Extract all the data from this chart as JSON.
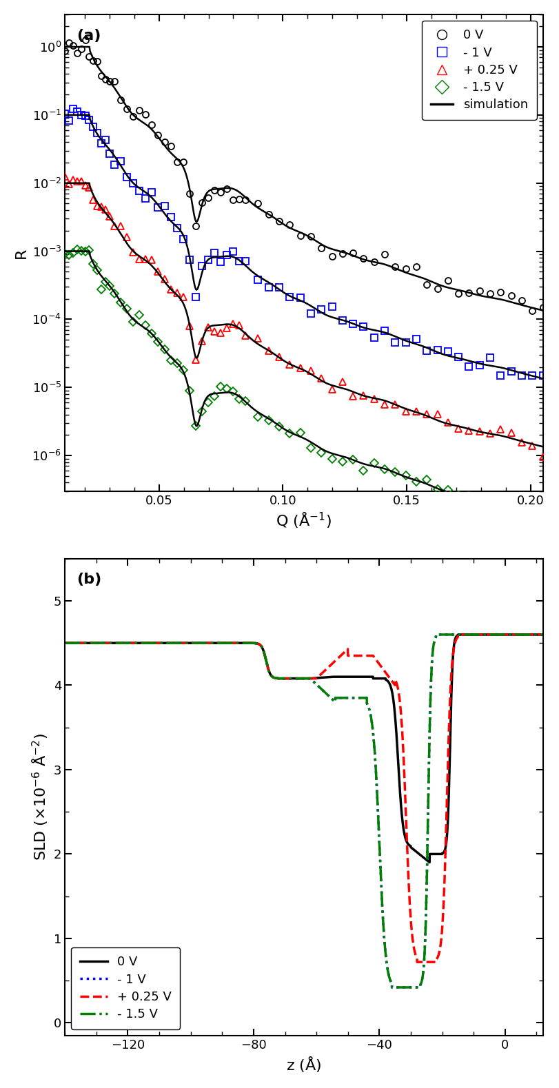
{
  "panel_a": {
    "title_label": "(a)",
    "xlabel": "Q (Å⁻¹)",
    "ylabel": "R",
    "xlim": [
      0.012,
      0.205
    ],
    "ylim": [
      3e-07,
      3.0
    ],
    "colors": [
      "black",
      "blue",
      "red",
      "green"
    ],
    "markers": [
      "o",
      "s",
      "^",
      "D"
    ],
    "offsets": [
      1.0,
      0.1,
      0.01,
      0.001
    ],
    "labels": [
      "0 V",
      "- 1 V",
      "+ 0.25 V",
      "- 1.5 V"
    ]
  },
  "panel_b": {
    "title_label": "(b)",
    "xlabel": "z (Å)",
    "ylabel": "SLD (x10⁻⁶ Å⁻²)",
    "xlim": [
      -140,
      12
    ],
    "ylim": [
      -0.15,
      5.5
    ],
    "colors": [
      "black",
      "blue",
      "red",
      "green"
    ],
    "linestyles": [
      "-",
      ":",
      "--",
      "-."
    ],
    "linewidths": [
      2.5,
      2.5,
      2.5,
      2.5
    ],
    "labels": [
      "0 V",
      "- 1 V",
      "+ 0.25 V",
      "- 1.5 V"
    ]
  }
}
